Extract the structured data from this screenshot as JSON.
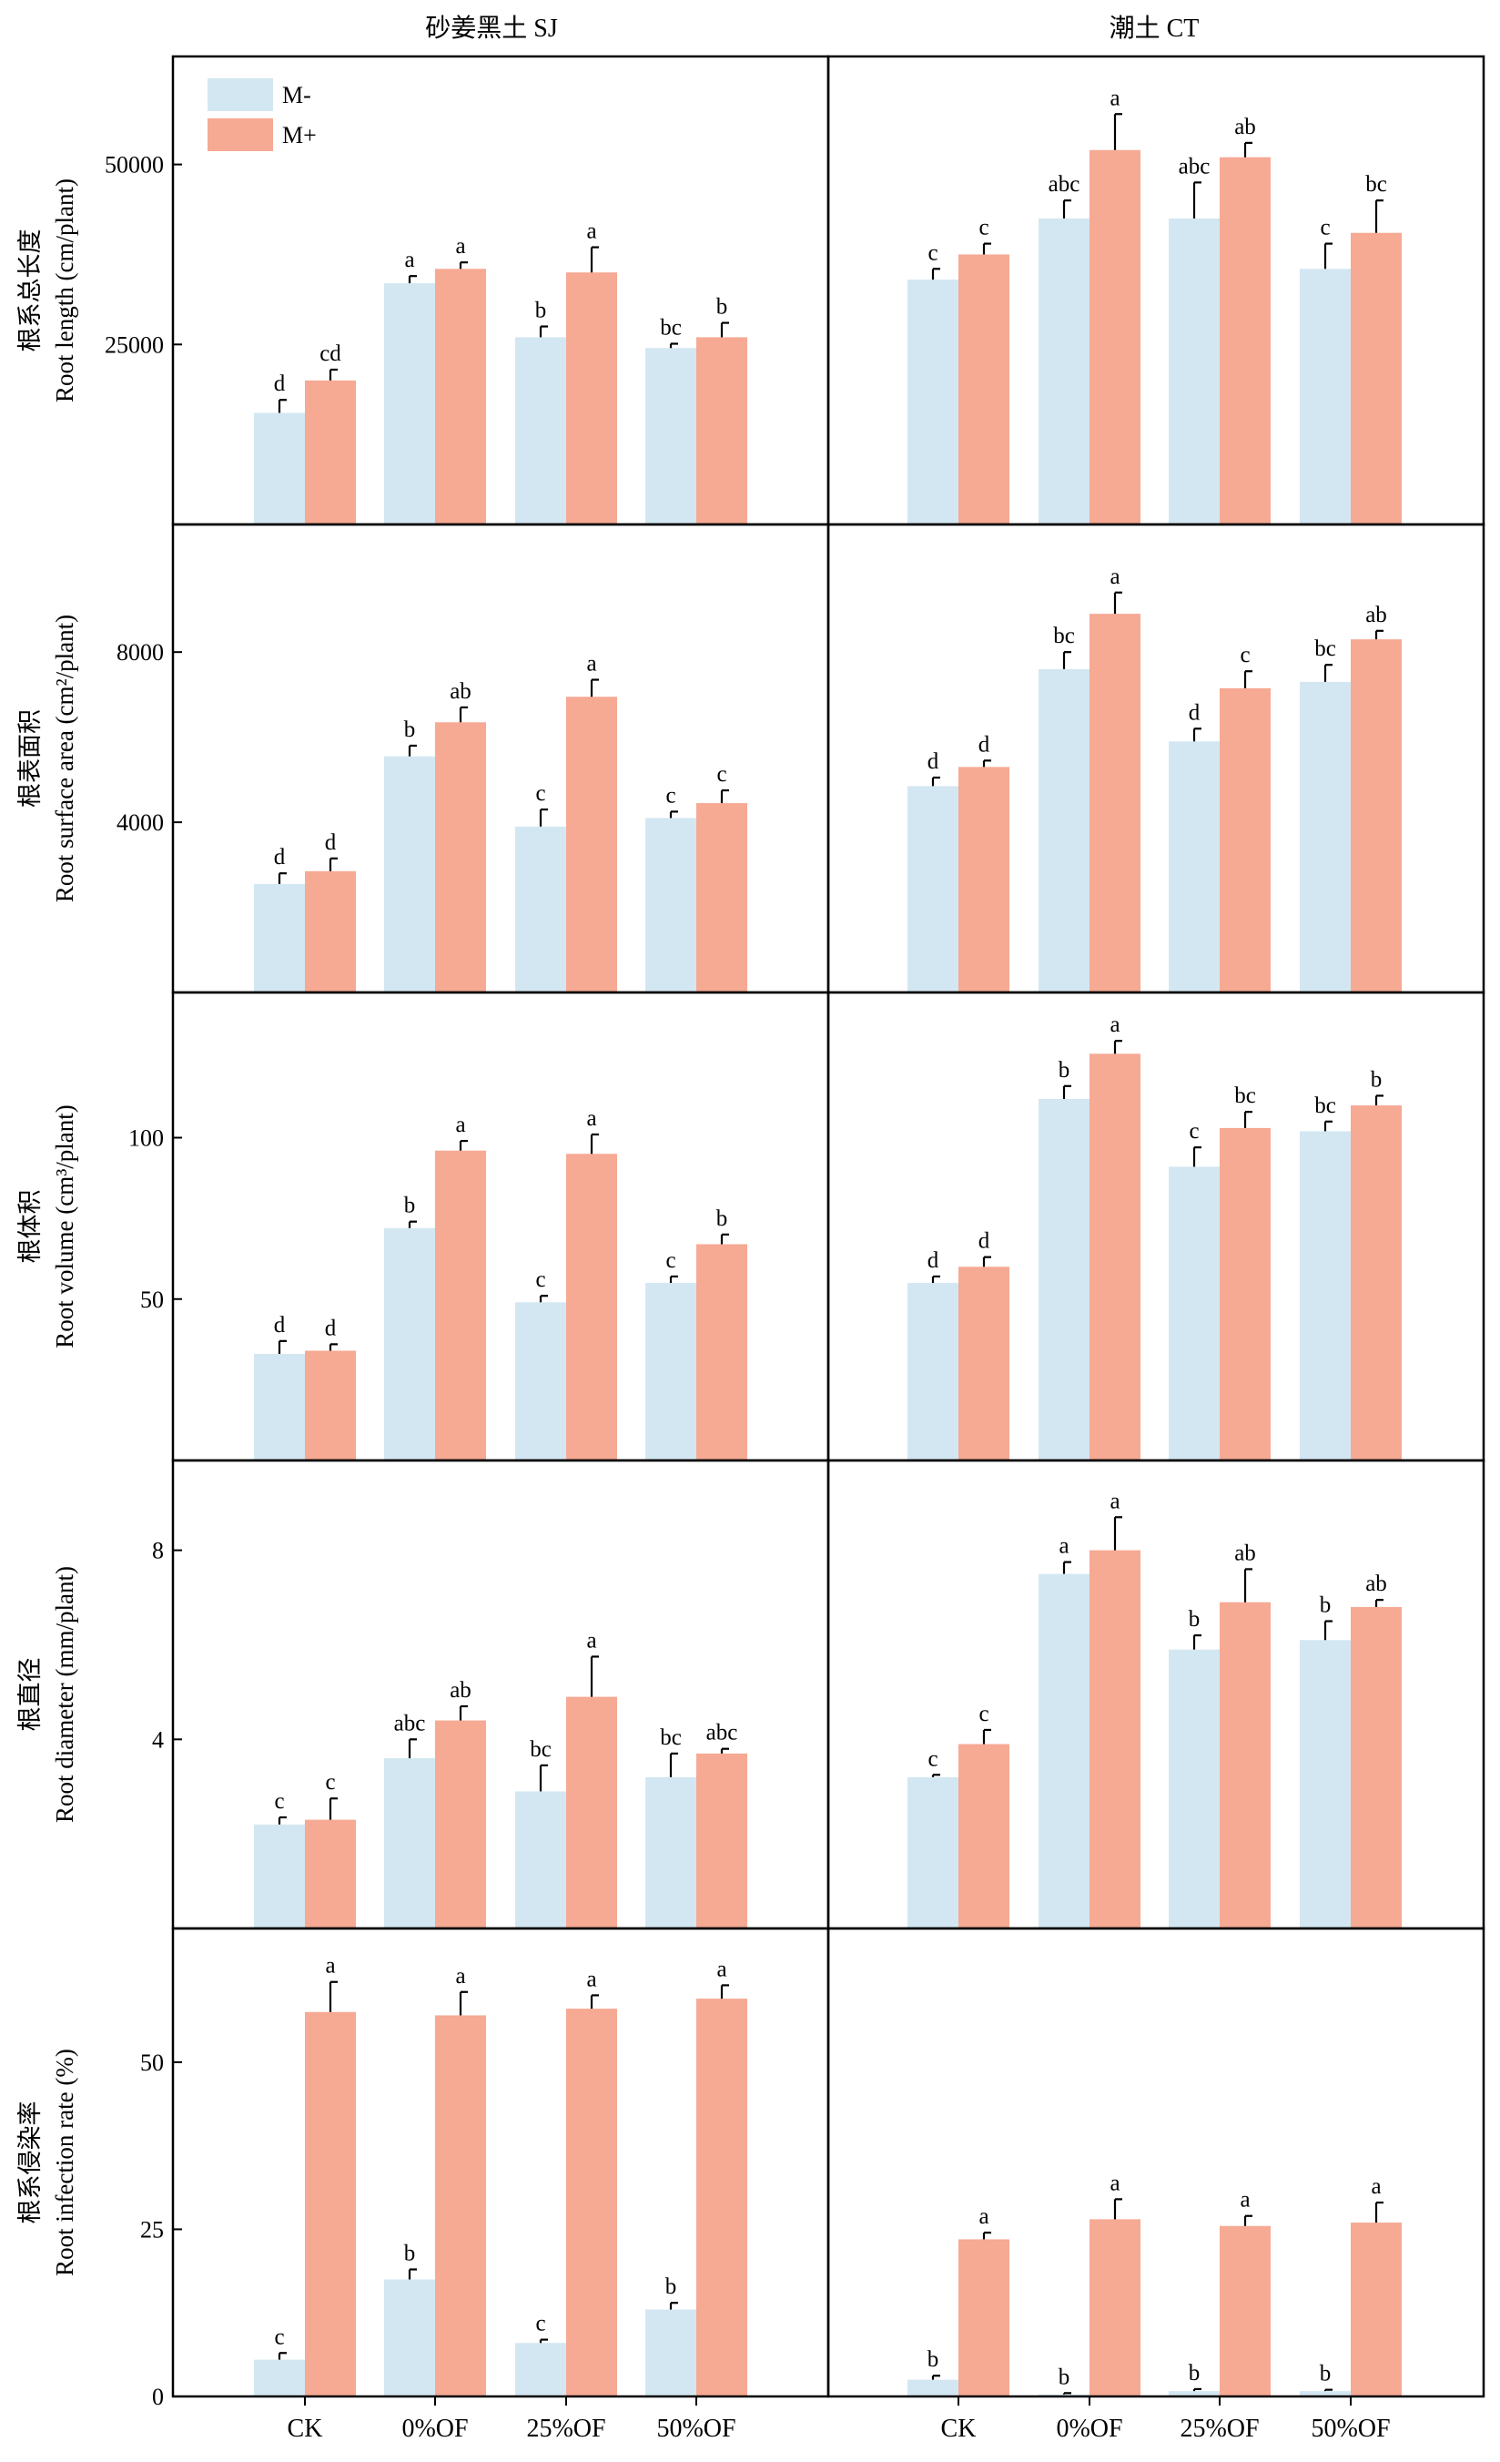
{
  "colors": {
    "m_minus": "#d3e7f2",
    "m_plus": "#f6a993",
    "axis": "#000000"
  },
  "legend": {
    "items": [
      "M-",
      "M+"
    ],
    "placement": "top-left"
  },
  "column_titles": [
    "砂姜黑土 SJ",
    "潮土 CT"
  ],
  "categories": [
    "CK",
    "0%OF",
    "25%OF",
    "50%OF"
  ],
  "chart_data": [
    {
      "type": "bar",
      "row": 0,
      "col": 0,
      "ylabel_cn": "根系总长度",
      "ylabel_en": "Root length (cm/plant)",
      "ylim": [
        0,
        65000
      ],
      "yticks": [
        25000,
        50000
      ],
      "categories": [
        "CK",
        "0%OF",
        "25%OF",
        "50%OF"
      ],
      "series": [
        {
          "name": "M-",
          "values": [
            15500,
            33500,
            26000,
            24500
          ],
          "errors": [
            1800,
            1000,
            1500,
            600
          ],
          "letters": [
            "d",
            "a",
            "b",
            "bc"
          ]
        },
        {
          "name": "M+",
          "values": [
            20000,
            35500,
            35000,
            26000
          ],
          "errors": [
            1500,
            900,
            3500,
            2000
          ],
          "letters": [
            "cd",
            "a",
            "a",
            "b"
          ]
        }
      ]
    },
    {
      "type": "bar",
      "row": 0,
      "col": 1,
      "ylabel_cn": "",
      "ylabel_en": "",
      "ylim": [
        0,
        65000
      ],
      "yticks": [
        25000,
        50000
      ],
      "categories": [
        "CK",
        "0%OF",
        "25%OF",
        "50%OF"
      ],
      "series": [
        {
          "name": "M-",
          "values": [
            34000,
            42500,
            42500,
            35500
          ],
          "errors": [
            1500,
            2500,
            5000,
            3500
          ],
          "letters": [
            "c",
            "abc",
            "abc",
            "c"
          ]
        },
        {
          "name": "M+",
          "values": [
            37500,
            52000,
            51000,
            40500
          ],
          "errors": [
            1500,
            5000,
            2000,
            4500
          ],
          "letters": [
            "c",
            "a",
            "ab",
            "bc"
          ]
        }
      ]
    },
    {
      "type": "bar",
      "row": 1,
      "col": 0,
      "ylabel_cn": "根表面积",
      "ylabel_en": "Root surface area (cm²/plant)",
      "ylim": [
        0,
        11000
      ],
      "yticks": [
        4000,
        8000
      ],
      "categories": [
        "CK",
        "0%OF",
        "25%OF",
        "50%OF"
      ],
      "series": [
        {
          "name": "M-",
          "values": [
            2550,
            5550,
            3900,
            4100
          ],
          "errors": [
            250,
            250,
            400,
            150
          ],
          "letters": [
            "d",
            "b",
            "c",
            "c"
          ]
        },
        {
          "name": "M+",
          "values": [
            2850,
            6350,
            6950,
            4450
          ],
          "errors": [
            300,
            350,
            400,
            300
          ],
          "letters": [
            "d",
            "ab",
            "a",
            "c"
          ]
        }
      ]
    },
    {
      "type": "bar",
      "row": 1,
      "col": 1,
      "ylabel_cn": "",
      "ylabel_en": "",
      "ylim": [
        0,
        11000
      ],
      "yticks": [
        4000,
        8000
      ],
      "categories": [
        "CK",
        "0%OF",
        "25%OF",
        "50%OF"
      ],
      "series": [
        {
          "name": "M-",
          "values": [
            4850,
            7600,
            5900,
            7300
          ],
          "errors": [
            200,
            400,
            300,
            400
          ],
          "letters": [
            "d",
            "bc",
            "d",
            "bc"
          ]
        },
        {
          "name": "M+",
          "values": [
            5300,
            8900,
            7150,
            8300
          ],
          "errors": [
            150,
            500,
            400,
            200
          ],
          "letters": [
            "d",
            "a",
            "c",
            "ab"
          ]
        }
      ]
    },
    {
      "type": "bar",
      "row": 2,
      "col": 0,
      "ylabel_cn": "根体积",
      "ylabel_en": "Root volume (cm³/plant)",
      "ylim": [
        0,
        145
      ],
      "yticks": [
        50,
        100
      ],
      "categories": [
        "CK",
        "0%OF",
        "25%OF",
        "50%OF"
      ],
      "series": [
        {
          "name": "M-",
          "values": [
            33,
            72,
            49,
            55
          ],
          "errors": [
            4,
            2,
            2,
            2
          ],
          "letters": [
            "d",
            "b",
            "c",
            "c"
          ]
        },
        {
          "name": "M+",
          "values": [
            34,
            96,
            95,
            67
          ],
          "errors": [
            2,
            3,
            6,
            3
          ],
          "letters": [
            "d",
            "a",
            "a",
            "b"
          ]
        }
      ]
    },
    {
      "type": "bar",
      "row": 2,
      "col": 1,
      "ylabel_cn": "",
      "ylabel_en": "",
      "ylim": [
        0,
        145
      ],
      "yticks": [
        50,
        100
      ],
      "categories": [
        "CK",
        "0%OF",
        "25%OF",
        "50%OF"
      ],
      "series": [
        {
          "name": "M-",
          "values": [
            55,
            112,
            91,
            102
          ],
          "errors": [
            2,
            4,
            6,
            3
          ],
          "letters": [
            "d",
            "b",
            "c",
            "bc"
          ]
        },
        {
          "name": "M+",
          "values": [
            60,
            126,
            103,
            110
          ],
          "errors": [
            3,
            4,
            5,
            3
          ],
          "letters": [
            "d",
            "a",
            "bc",
            "b"
          ]
        }
      ]
    },
    {
      "type": "bar",
      "row": 3,
      "col": 0,
      "ylabel_cn": "根直径",
      "ylabel_en": "Root diameter (mm/plant)",
      "ylim": [
        0,
        9.9
      ],
      "yticks": [
        4,
        8
      ],
      "categories": [
        "CK",
        "0%OF",
        "25%OF",
        "50%OF"
      ],
      "series": [
        {
          "name": "M-",
          "values": [
            2.2,
            3.6,
            2.9,
            3.2
          ],
          "errors": [
            0.15,
            0.4,
            0.55,
            0.5
          ],
          "letters": [
            "c",
            "abc",
            "bc",
            "bc"
          ]
        },
        {
          "name": "M+",
          "values": [
            2.3,
            4.4,
            4.9,
            3.7
          ],
          "errors": [
            0.45,
            0.3,
            0.85,
            0.1
          ],
          "letters": [
            "c",
            "ab",
            "a",
            "abc"
          ]
        }
      ]
    },
    {
      "type": "bar",
      "row": 3,
      "col": 1,
      "ylabel_cn": "",
      "ylabel_en": "",
      "ylim": [
        0,
        9.9
      ],
      "yticks": [
        4,
        8
      ],
      "categories": [
        "CK",
        "0%OF",
        "25%OF",
        "50%OF"
      ],
      "series": [
        {
          "name": "M-",
          "values": [
            3.2,
            7.5,
            5.9,
            6.1
          ],
          "errors": [
            0.05,
            0.25,
            0.3,
            0.4
          ],
          "letters": [
            "c",
            "a",
            "b",
            "b"
          ]
        },
        {
          "name": "M+",
          "values": [
            3.9,
            8.0,
            6.9,
            6.8
          ],
          "errors": [
            0.3,
            0.7,
            0.7,
            0.15
          ],
          "letters": [
            "c",
            "a",
            "ab",
            "ab"
          ]
        }
      ]
    },
    {
      "type": "bar",
      "row": 4,
      "col": 0,
      "ylabel_cn": "根系侵染率",
      "ylabel_en": "Root infection rate (%)",
      "ylim": [
        0,
        70
      ],
      "yticks": [
        0,
        25,
        50
      ],
      "categories": [
        "CK",
        "0%OF",
        "25%OF",
        "50%OF"
      ],
      "series": [
        {
          "name": "M-",
          "values": [
            5.5,
            17.5,
            8.0,
            13.0
          ],
          "errors": [
            1.0,
            1.5,
            0.5,
            1.0
          ],
          "letters": [
            "c",
            "b",
            "c",
            "b"
          ]
        },
        {
          "name": "M+",
          "values": [
            57.5,
            57.0,
            58.0,
            59.5
          ],
          "errors": [
            4.5,
            3.5,
            2.0,
            2.0
          ],
          "letters": [
            "a",
            "a",
            "a",
            "a"
          ]
        }
      ]
    },
    {
      "type": "bar",
      "row": 4,
      "col": 1,
      "ylabel_cn": "",
      "ylabel_en": "",
      "ylim": [
        0,
        70
      ],
      "yticks": [
        0,
        25,
        50
      ],
      "categories": [
        "CK",
        "0%OF",
        "25%OF",
        "50%OF"
      ],
      "series": [
        {
          "name": "M-",
          "values": [
            2.5,
            0.3,
            0.8,
            0.8
          ],
          "errors": [
            0.6,
            0.2,
            0.3,
            0.2
          ],
          "letters": [
            "b",
            "b",
            "b",
            "b"
          ]
        },
        {
          "name": "M+",
          "values": [
            23.5,
            26.5,
            25.5,
            26.0
          ],
          "errors": [
            1.0,
            3.0,
            1.5,
            3.0
          ],
          "letters": [
            "a",
            "a",
            "a",
            "a"
          ]
        }
      ]
    }
  ]
}
